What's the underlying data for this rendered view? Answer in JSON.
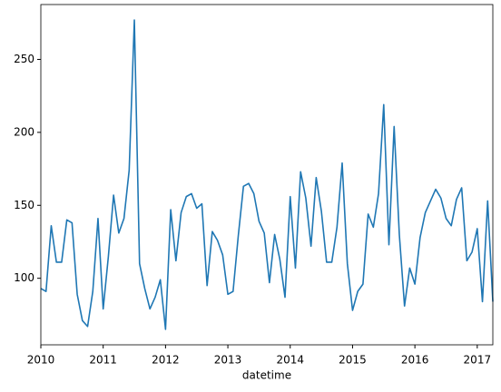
{
  "chart_data": {
    "type": "line",
    "x_label": "datetime",
    "categories": [
      "2010",
      null,
      null,
      null,
      null,
      null,
      null,
      null,
      null,
      null,
      null,
      null,
      "2011",
      null,
      null,
      null,
      null,
      null,
      null,
      null,
      null,
      null,
      null,
      null,
      "2012",
      null,
      null,
      null,
      null,
      null,
      null,
      null,
      null,
      null,
      null,
      null,
      "2013",
      null,
      null,
      null,
      null,
      null,
      null,
      null,
      null,
      null,
      null,
      null,
      "2014",
      null,
      null,
      null,
      null,
      null,
      null,
      null,
      null,
      null,
      null,
      null,
      "2015",
      null,
      null,
      null,
      null,
      null,
      null,
      null,
      null,
      null,
      null,
      null,
      "2016",
      null,
      null,
      null,
      null,
      null,
      null,
      null,
      null,
      null,
      null,
      null,
      "2017",
      null,
      null,
      null
    ],
    "values": [
      93,
      91,
      136,
      111,
      111,
      140,
      138,
      89,
      71,
      67,
      91,
      141,
      79,
      115,
      157,
      131,
      141,
      174,
      277,
      110,
      93,
      79,
      87,
      99,
      65,
      147,
      112,
      145,
      156,
      158,
      148,
      151,
      95,
      132,
      126,
      116,
      89,
      91,
      129,
      163,
      165,
      158,
      139,
      131,
      97,
      130,
      113,
      87,
      156,
      107,
      173,
      155,
      122,
      169,
      146,
      111,
      111,
      135,
      179,
      110,
      78,
      91,
      96,
      144,
      135,
      158,
      219,
      123,
      204,
      130,
      81,
      107,
      96,
      128,
      145,
      153,
      161,
      155,
      141,
      136,
      154,
      162,
      112,
      118,
      134,
      84,
      153,
      84
    ],
    "color": "#1f77b4",
    "ylim": [
      54.4,
      287.6
    ],
    "yticks": [
      100,
      150,
      200,
      250
    ],
    "grid": false
  }
}
